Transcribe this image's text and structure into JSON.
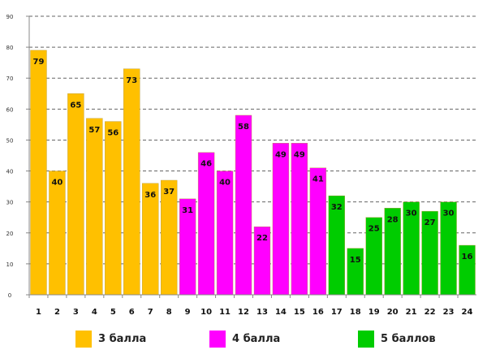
{
  "chart_data": {
    "type": "bar",
    "title": "",
    "xlabel": "",
    "ylabel": "",
    "ylim": [
      0,
      90
    ],
    "yticks": [
      0,
      10,
      20,
      30,
      40,
      50,
      60,
      70,
      80,
      90
    ],
    "grid": true,
    "legend_position": "bottom",
    "categories": [
      "1",
      "2",
      "3",
      "4",
      "5",
      "6",
      "7",
      "8",
      "9",
      "10",
      "11",
      "12",
      "13",
      "14",
      "15",
      "16",
      "17",
      "18",
      "19",
      "20",
      "21",
      "22",
      "23",
      "24"
    ],
    "values": [
      79,
      40,
      65,
      57,
      56,
      73,
      36,
      37,
      31,
      46,
      40,
      58,
      22,
      49,
      49,
      41,
      32,
      15,
      25,
      28,
      30,
      27,
      30,
      16
    ],
    "groups": [
      0,
      0,
      0,
      0,
      0,
      0,
      0,
      0,
      1,
      1,
      1,
      1,
      1,
      1,
      1,
      1,
      2,
      2,
      2,
      2,
      2,
      2,
      2,
      2
    ],
    "series": [
      {
        "name": "3 балла",
        "color": "#FFC000"
      },
      {
        "name": "4 балла",
        "color": "#FF00FF"
      },
      {
        "name": "5 баллов",
        "color": "#00CC00"
      }
    ]
  }
}
